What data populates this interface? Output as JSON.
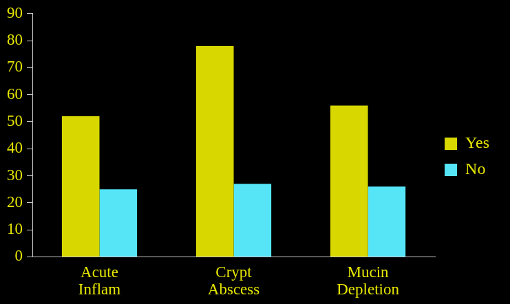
{
  "chart_data": {
    "type": "bar",
    "categories": [
      "Acute\nInflam",
      "Crypt\nAbscess",
      "Mucin\nDepletion"
    ],
    "series": [
      {
        "name": "Yes",
        "color": "#d8d800",
        "values": [
          52,
          78,
          56
        ]
      },
      {
        "name": "No",
        "color": "#55e5f7",
        "values": [
          25,
          27,
          26
        ]
      }
    ],
    "ylim": [
      0,
      90
    ],
    "yticks": [
      0,
      10,
      20,
      30,
      40,
      50,
      60,
      70,
      80,
      90
    ],
    "grid": false,
    "legend": "right"
  }
}
